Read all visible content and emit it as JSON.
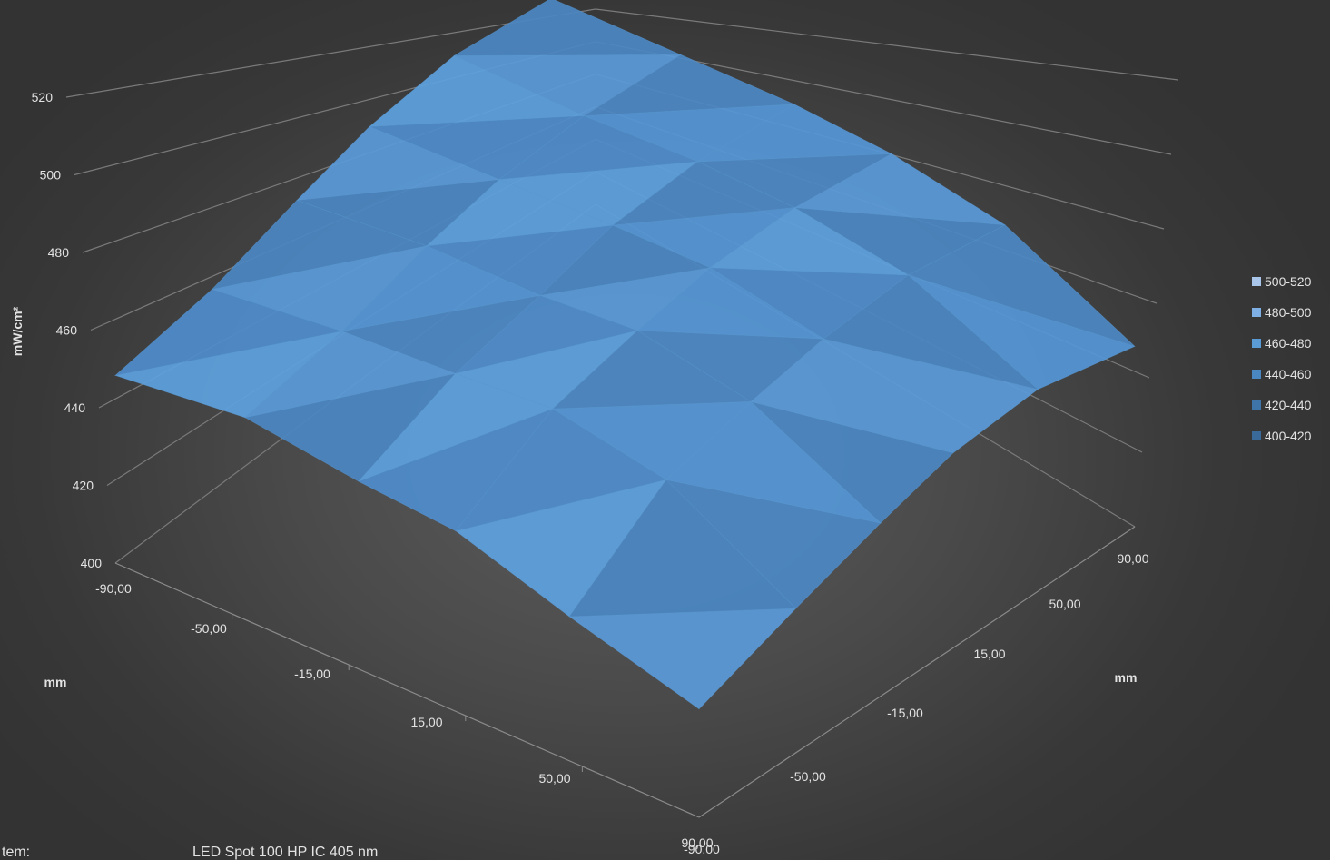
{
  "chart_data": {
    "type": "surface",
    "zlabel": "mW/cm²",
    "xlabel": "mm",
    "ylabel": "mm",
    "zlim": [
      400,
      520
    ],
    "z_ticks": [
      "400",
      "420",
      "440",
      "460",
      "480",
      "500",
      "520"
    ],
    "x_ticks": [
      "-90,00",
      "-50,00",
      "-15,00",
      "15,00",
      "50,00",
      "90,00"
    ],
    "y_ticks": [
      "-90,00",
      "-50,00",
      "-15,00",
      "15,00",
      "50,00",
      "90,00"
    ],
    "x": [
      -90,
      -50,
      -15,
      15,
      50,
      90
    ],
    "y": [
      -90,
      -50,
      -15,
      15,
      50,
      90
    ],
    "z": [
      [
        452,
        458,
        467,
        474,
        478,
        476
      ],
      [
        456,
        462,
        470,
        475,
        477,
        476
      ],
      [
        452,
        464,
        470,
        476,
        478,
        476
      ],
      [
        450,
        466,
        472,
        476,
        477,
        474
      ],
      [
        440,
        460,
        466,
        470,
        472,
        468
      ],
      [
        430,
        440,
        448,
        454,
        456,
        450
      ]
    ],
    "legend": [
      {
        "label": "500-520",
        "color": "#a9c6ea"
      },
      {
        "label": "480-500",
        "color": "#7fb0e5"
      },
      {
        "label": "460-480",
        "color": "#5b9bd5"
      },
      {
        "label": "440-460",
        "color": "#4a86c0"
      },
      {
        "label": "420-440",
        "color": "#3f74a8"
      },
      {
        "label": "400-420",
        "color": "#3a6a99"
      }
    ],
    "legend_position": "right",
    "grid": true
  },
  "footer": {
    "item_label": "tem:",
    "item_value": "LED Spot 100 HP IC 405 nm"
  }
}
